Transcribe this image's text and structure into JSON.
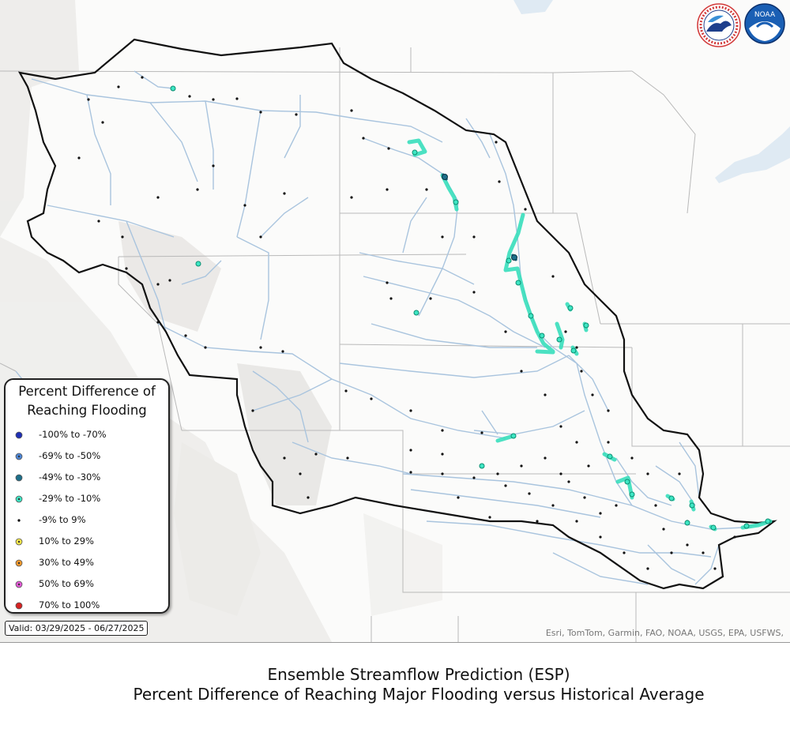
{
  "logos": {
    "nws": {
      "text": "NATIONAL WEATHER SERVICE",
      "icon": "nws-logo-icon"
    },
    "noaa": {
      "text": "NOAA",
      "icon": "noaa-logo-icon"
    }
  },
  "legend": {
    "title_line1": "Percent Difference of",
    "title_line2": "Reaching Flooding",
    "items": [
      {
        "label": "-100% to -70%",
        "color": "#1f2fb5",
        "style": "solid"
      },
      {
        "label": "-69% to -50%",
        "color": "#4c86d6",
        "style": "ring"
      },
      {
        "label": "-49% to -30%",
        "color": "#1d6f8a",
        "style": "solid"
      },
      {
        "label": "-29% to -10%",
        "color": "#3ee6c4",
        "style": "ring"
      },
      {
        "label": "-9% to 9%",
        "color": "#000000",
        "style": "dot"
      },
      {
        "label": "10% to 29%",
        "color": "#f2e64a",
        "style": "ring"
      },
      {
        "label": "30% to 49%",
        "color": "#f29a2e",
        "style": "ring"
      },
      {
        "label": "50% to 69%",
        "color": "#e35ad6",
        "style": "ring"
      },
      {
        "label": "70% to 100%",
        "color": "#d62222",
        "style": "solid"
      }
    ]
  },
  "valid_range": "Valid: 03/29/2025 - 06/27/2025",
  "attribution": "Esri, TomTom, Garmin, FAO, NOAA, USGS, EPA, USFWS,",
  "caption": {
    "line1": "Ensemble Streamflow Prediction (ESP)",
    "line2": "Percent Difference of Reaching Major Flooding versus Historical Average"
  }
}
